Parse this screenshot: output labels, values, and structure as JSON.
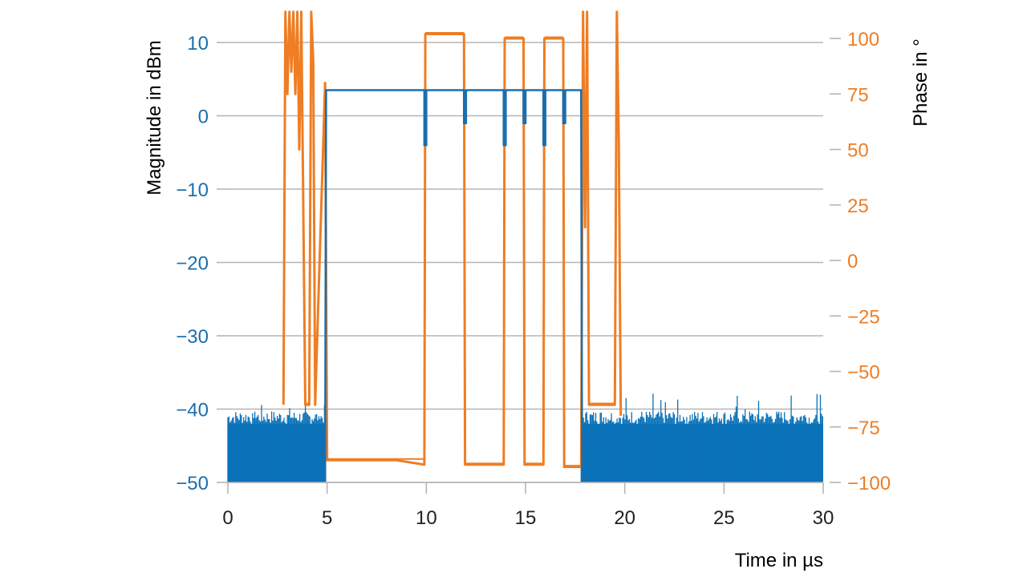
{
  "colors": {
    "magnitude": "#1a6fae",
    "magnitude_fill": "#0b72b9",
    "phase": "#ee7d23",
    "grid": "#b5b5b5",
    "axis_text": "#222222"
  },
  "chart_data": {
    "type": "line",
    "xlabel": "Time in µs",
    "ylabel_left": "Magnitude in dBm",
    "ylabel_right": "Phase in °",
    "xlim": [
      0,
      30
    ],
    "ylim_left": [
      -50,
      10
    ],
    "ylim_right": [
      -100,
      100
    ],
    "x_ticks": [
      0,
      5,
      10,
      15,
      20,
      25,
      30
    ],
    "y_ticks_left": [
      10,
      0,
      -10,
      -20,
      -30,
      -40,
      -50
    ],
    "y_ticks_right": [
      100,
      75,
      50,
      25,
      0,
      -25,
      -50,
      -75,
      -100
    ],
    "grid": true,
    "series": [
      {
        "axis": "left",
        "noise_floor": {
          "x_ranges": [
            [
              0,
              4.9
            ],
            [
              17.8,
              30
            ]
          ],
          "level_range": [
            -50,
            -40
          ]
        },
        "x": [
          4.9,
          4.95,
          9.9,
          9.9,
          10.0,
          10.0,
          11.9,
          11.9,
          12.0,
          12.0,
          13.9,
          13.9,
          14.0,
          14.0,
          14.9,
          14.9,
          15.0,
          15.0,
          15.9,
          15.9,
          16.0,
          16.0,
          16.9,
          16.9,
          17.0,
          17.0,
          17.8,
          17.85
        ],
        "y": [
          -50,
          3.5,
          3.5,
          -4,
          -4,
          3.5,
          3.5,
          -1,
          -1,
          3.5,
          3.5,
          -4,
          -4,
          3.5,
          3.5,
          -1,
          -1,
          3.5,
          3.5,
          -4,
          -4,
          3.5,
          3.5,
          -1,
          -1,
          3.5,
          3.5,
          -50
        ]
      },
      {
        "axis": "right",
        "x": [
          2.8,
          2.9,
          3.0,
          3.1,
          3.2,
          3.3,
          3.4,
          3.5,
          3.6,
          3.7,
          3.9,
          4.1,
          4.2,
          4.3,
          4.4,
          4.9,
          5.0,
          8.5,
          9.9,
          9.95,
          11.9,
          11.95,
          13.9,
          13.95,
          14.9,
          14.95,
          15.9,
          15.95,
          16.9,
          16.95,
          17.8,
          17.9,
          18.0,
          18.1,
          18.2,
          18.3,
          18.5,
          19.5,
          19.6,
          19.7,
          19.8
        ],
        "y": [
          -65,
          112,
          75,
          112,
          85,
          112,
          75,
          112,
          50,
          112,
          -65,
          -65,
          112,
          90,
          -65,
          80,
          -90,
          -90,
          -92,
          102,
          102,
          -92,
          -92,
          100,
          100,
          -92,
          -92,
          100,
          100,
          -93,
          -93,
          112,
          15,
          112,
          -65,
          -65,
          -65,
          -65,
          112,
          55,
          -70
        ]
      }
    ]
  }
}
